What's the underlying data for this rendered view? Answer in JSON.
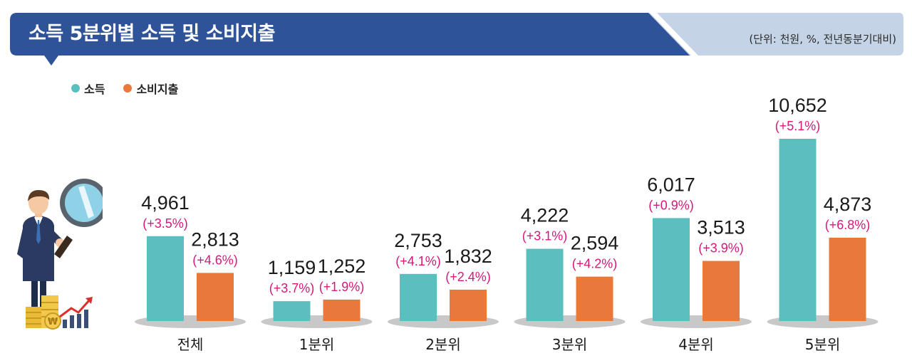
{
  "header": {
    "title": "소득 5분위별 소득 및 소비지출",
    "unit_note": "(단위: 천원, %, 전년동분기대비)"
  },
  "colors": {
    "banner": "#2e5398",
    "banner_accent": "#c5d3e6",
    "income": "#5bbfbf",
    "spending": "#e8793a",
    "percent_text": "#d6187a",
    "base_shadow": "#c8c8c8"
  },
  "legend": [
    {
      "label": "소득",
      "color": "#5bbfbf"
    },
    {
      "label": "소비지출",
      "color": "#e8793a"
    }
  ],
  "illustration": {
    "icons": [
      "businessman-icon",
      "magnifier-icon",
      "coin-stack-icon",
      "growth-arrow-icon"
    ],
    "coin_symbol": "₩"
  },
  "chart_data": {
    "type": "bar",
    "categories": [
      "전체",
      "1분위",
      "2분위",
      "3분위",
      "4분위",
      "5분위"
    ],
    "series": [
      {
        "name": "소득",
        "values": [
          4961,
          1159,
          2753,
          4222,
          6017,
          10652
        ],
        "labels": [
          "4,961",
          "1,159",
          "2,753",
          "4,222",
          "6,017",
          "10,652"
        ],
        "change_labels": [
          "(+3.5%)",
          "(+3.7%)",
          "(+4.1%)",
          "(+3.1%)",
          "(+0.9%)",
          "(+5.1%)"
        ]
      },
      {
        "name": "소비지출",
        "values": [
          2813,
          1252,
          1832,
          2594,
          3513,
          4873
        ],
        "labels": [
          "2,813",
          "1,252",
          "1,832",
          "2,594",
          "3,513",
          "4,873"
        ],
        "change_labels": [
          "(+4.6%)",
          "(+1.9%)",
          "(+2.4%)",
          "(+4.2%)",
          "(+3.9%)",
          "(+6.8%)"
        ]
      }
    ],
    "legend_position": "top-left",
    "grid": false,
    "ylim": [
      0,
      10652
    ]
  }
}
